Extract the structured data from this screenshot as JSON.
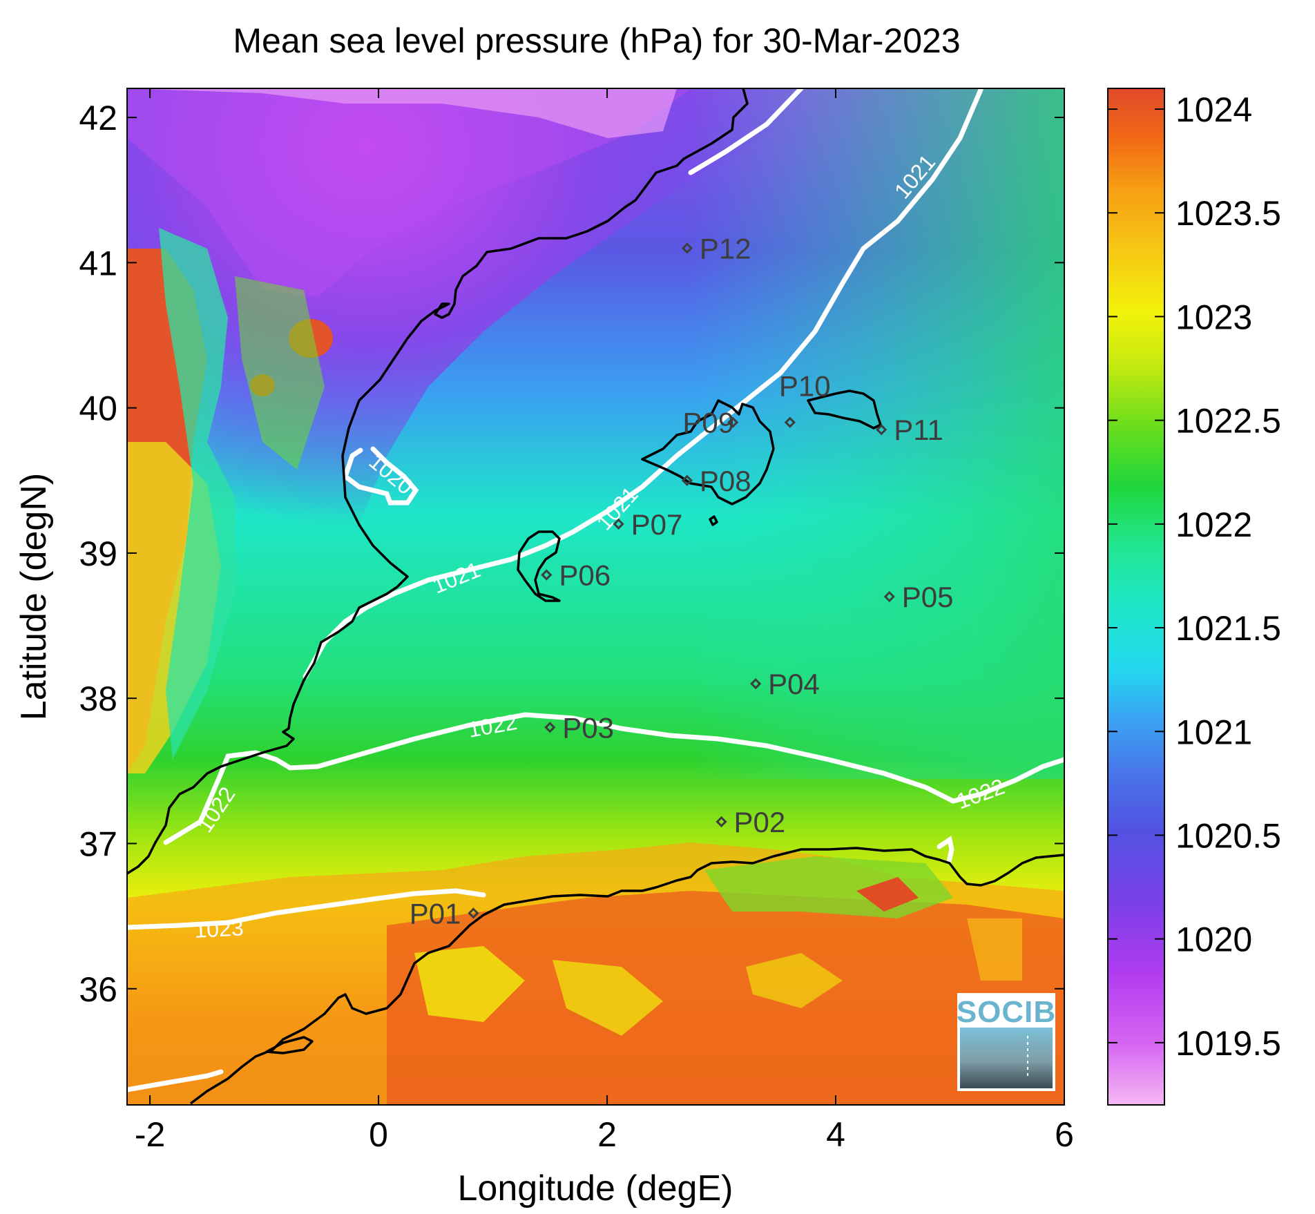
{
  "title": "Mean sea level pressure (hPa) for 30-Mar-2023",
  "chart_data": {
    "type": "heatmap",
    "title": "Mean sea level pressure (hPa) for 30-Mar-2023",
    "xlabel": "Longitude (degE)",
    "ylabel": "Latitude (degN)",
    "xlim": [
      -2.2,
      6.0
    ],
    "ylim": [
      35.2,
      42.2
    ],
    "x_ticks": [
      "-2",
      "0",
      "2",
      "4",
      "6"
    ],
    "y_ticks": [
      "36",
      "37",
      "38",
      "39",
      "40",
      "41",
      "42"
    ],
    "colorbar": {
      "range": [
        1019.2,
        1024.1
      ],
      "ticks": [
        "1019.5",
        "1020",
        "1020.5",
        "1021",
        "1021.5",
        "1022",
        "1022.5",
        "1023",
        "1023.5",
        "1024"
      ],
      "colors": [
        "#f4b8f4",
        "#c84af2",
        "#7a3fe6",
        "#4e62e0",
        "#3a9af4",
        "#1ee6dc",
        "#23e683",
        "#2ad42a",
        "#aae60f",
        "#f0f00a",
        "#f6b414",
        "#f26a14",
        "#e04c24"
      ]
    },
    "contour_labels": [
      "1020",
      "1021",
      "1021",
      "1021",
      "1022",
      "1022",
      "1022",
      "1023"
    ],
    "stations": [
      {
        "name": "P01",
        "lon": 0.83,
        "lat": 36.52
      },
      {
        "name": "P02",
        "lon": 3.0,
        "lat": 37.15
      },
      {
        "name": "P03",
        "lon": 1.5,
        "lat": 37.8
      },
      {
        "name": "P04",
        "lon": 3.3,
        "lat": 38.1
      },
      {
        "name": "P05",
        "lon": 4.47,
        "lat": 38.7
      },
      {
        "name": "P06",
        "lon": 1.47,
        "lat": 38.85
      },
      {
        "name": "P07",
        "lon": 2.1,
        "lat": 39.2
      },
      {
        "name": "P08",
        "lon": 2.7,
        "lat": 39.5
      },
      {
        "name": "P09",
        "lon": 3.1,
        "lat": 39.9
      },
      {
        "name": "P10",
        "lon": 3.6,
        "lat": 39.9
      },
      {
        "name": "P11",
        "lon": 4.4,
        "lat": 39.85
      },
      {
        "name": "P12",
        "lon": 2.7,
        "lat": 41.1
      }
    ]
  },
  "logo": {
    "text": "SOCIB"
  }
}
